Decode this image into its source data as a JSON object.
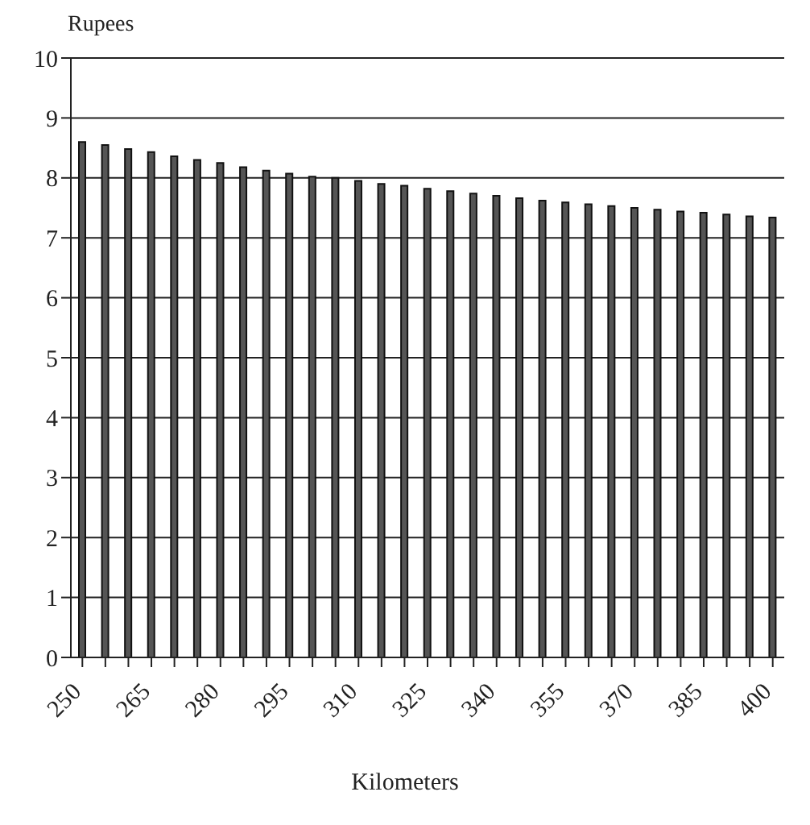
{
  "chart_data": {
    "type": "bar",
    "ylabel": "Rupees",
    "xlabel": "Kilometers",
    "categories": [
      "250",
      null,
      null,
      "265",
      null,
      null,
      "280",
      null,
      null,
      "295",
      null,
      null,
      "310",
      null,
      null,
      "325",
      null,
      null,
      "340",
      null,
      null,
      "355",
      null,
      null,
      "370",
      null,
      null,
      "385",
      null,
      null,
      "400"
    ],
    "values": [
      8.6,
      8.55,
      8.48,
      8.43,
      8.36,
      8.3,
      8.25,
      8.18,
      8.12,
      8.07,
      8.02,
      8.0,
      7.95,
      7.9,
      7.87,
      7.82,
      7.78,
      7.74,
      7.7,
      7.66,
      7.62,
      7.59,
      7.56,
      7.53,
      7.5,
      7.47,
      7.44,
      7.42,
      7.39,
      7.36,
      7.34
    ],
    "color": "#555555",
    "ylim": [
      0,
      10
    ],
    "yticks": [
      0,
      1,
      2,
      3,
      4,
      5,
      6,
      7,
      8,
      9,
      10
    ],
    "grid": "y"
  }
}
